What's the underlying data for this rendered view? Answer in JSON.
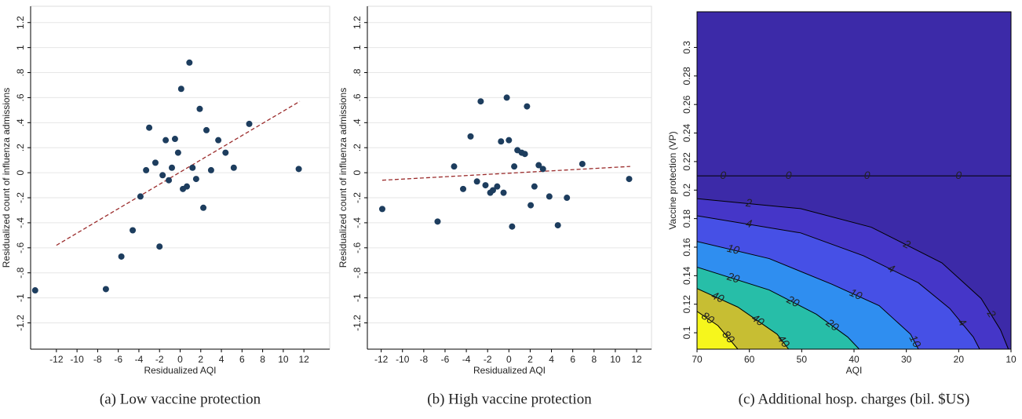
{
  "chart_data": [
    {
      "type": "scatter",
      "caption": "(a) Low vaccine protection",
      "xlabel": "Residualized AQI",
      "ylabel": "Residualized count of influenza admissions",
      "xlim": [
        -14.5,
        14.5
      ],
      "ylim": [
        -1.41,
        1.33
      ],
      "xticks": [
        -12,
        -10,
        -8,
        -6,
        -4,
        -2,
        0,
        2,
        4,
        6,
        8,
        10,
        12
      ],
      "yticks": [
        -1.2,
        -1,
        {
          "value": -0.8,
          "label": "-.8"
        },
        {
          "value": -0.6,
          "label": "-.6"
        },
        {
          "value": -0.4,
          "label": "-.4"
        },
        {
          "value": -0.2,
          "label": "-.2"
        },
        0,
        {
          "value": 0.2,
          "label": ".2"
        },
        {
          "value": 0.4,
          "label": ".4"
        },
        {
          "value": 0.6,
          "label": ".6"
        },
        {
          "value": 0.8,
          "label": ".8"
        },
        1,
        1.2
      ],
      "grid": true,
      "color": "#1d3d5e",
      "x": [
        -14.06,
        -7.2,
        -5.7,
        -4.6,
        -2.0,
        -3.85,
        -3.3,
        -3.0,
        -2.4,
        -1.7,
        -1.4,
        -1.1,
        -0.8,
        -0.5,
        -0.2,
        0.1,
        0.27,
        0.65,
        0.9,
        1.2,
        1.55,
        1.9,
        2.25,
        2.55,
        3.0,
        3.7,
        4.4,
        5.2,
        6.7,
        11.5
      ],
      "values": [
        -0.94,
        -0.93,
        -0.67,
        -0.46,
        -0.59,
        -0.19,
        0.02,
        0.36,
        0.08,
        -0.02,
        0.26,
        -0.06,
        0.04,
        0.27,
        0.16,
        0.67,
        -0.13,
        -0.11,
        0.88,
        0.04,
        -0.05,
        0.51,
        -0.28,
        0.34,
        0.02,
        0.26,
        0.16,
        0.04,
        0.39,
        0.03
      ],
      "fit": {
        "x": [
          -12,
          11.6
        ],
        "values": [
          -0.58,
          0.57
        ],
        "color": "#9b2c2c"
      }
    },
    {
      "type": "scatter",
      "caption": "(b) High vaccine protection",
      "xlabel": "Residualized AQI",
      "ylabel": "Residualized count of influenza admissions",
      "xlim": [
        -13.3,
        13.4
      ],
      "ylim": [
        -1.41,
        1.33
      ],
      "xticks": [
        -12,
        -10,
        -8,
        -6,
        -4,
        -2,
        0,
        2,
        4,
        6,
        8,
        10,
        12
      ],
      "yticks": [
        -1.2,
        -1,
        {
          "value": -0.8,
          "label": "-.8"
        },
        {
          "value": -0.6,
          "label": "-.6"
        },
        {
          "value": -0.4,
          "label": "-.4"
        },
        {
          "value": -0.2,
          "label": "-.2"
        },
        0,
        {
          "value": 0.2,
          "label": ".2"
        },
        {
          "value": 0.4,
          "label": ".4"
        },
        {
          "value": 0.6,
          "label": ".6"
        },
        {
          "value": 0.8,
          "label": ".8"
        },
        1,
        1.2
      ],
      "grid": true,
      "color": "#1d3d5e",
      "x": [
        -11.9,
        -6.7,
        -5.15,
        -4.3,
        -3.6,
        -3.0,
        -2.65,
        -2.2,
        -1.75,
        -1.5,
        -1.1,
        -0.74,
        -0.5,
        -0.2,
        0,
        0.3,
        0.5,
        0.8,
        1.2,
        1.5,
        1.7,
        2.05,
        2.4,
        2.8,
        3.2,
        3.8,
        4.6,
        5.45,
        6.9,
        11.3
      ],
      "values": [
        -0.29,
        -0.39,
        0.05,
        -0.13,
        0.29,
        -0.07,
        0.57,
        -0.1,
        -0.16,
        -0.14,
        -0.11,
        0.25,
        -0.16,
        0.6,
        0.26,
        -0.43,
        0.05,
        0.18,
        0.16,
        0.15,
        0.53,
        -0.26,
        -0.11,
        0.06,
        0.03,
        -0.19,
        -0.42,
        -0.2,
        0.07,
        -0.05
      ],
      "fit": {
        "x": [
          -11.9,
          11.4
        ],
        "values": [
          -0.06,
          0.05
        ],
        "color": "#9b2c2c"
      }
    },
    {
      "type": "contour",
      "caption": "(c) Additional hosp. charges (bil. $US)",
      "xlabel": "AQI",
      "ylabel": "Vaccine protection (VP)",
      "xlim": [
        70,
        10
      ],
      "ylim": [
        0.0885,
        0.325
      ],
      "xticks": [
        70,
        60,
        50,
        40,
        30,
        20,
        10
      ],
      "yticks": [
        0.1,
        0.12,
        0.14,
        0.16,
        0.18,
        0.2,
        0.22,
        0.24,
        0.26,
        0.28,
        0.3
      ],
      "background": "#3c2aa8",
      "levels": [
        {
          "level": 0,
          "x": [
            70,
            60,
            45,
            30,
            10
          ],
          "y": [
            0.21,
            0.21,
            0.21,
            0.21,
            0.21
          ]
        },
        {
          "level": 2,
          "fill": "#4536c8",
          "x": [
            70,
            50.2,
            36.7,
            23.2,
            15.7,
            12,
            10.5
          ],
          "y": [
            0.194,
            0.187,
            0.174,
            0.149,
            0.124,
            0.102,
            0.0885
          ]
        },
        {
          "level": 4,
          "fill": "#4650e6",
          "x": [
            70,
            50.2,
            38.2,
            27.7,
            21.7,
            17.2,
            16
          ],
          "y": [
            0.182,
            0.17,
            0.154,
            0.135,
            0.117,
            0.097,
            0.0885
          ]
        },
        {
          "level": 10,
          "fill": "#2f8ef0",
          "x": [
            70,
            56.2,
            44.2,
            35.2,
            29.2,
            27.7
          ],
          "y": [
            0.164,
            0.152,
            0.134,
            0.119,
            0.099,
            0.0885
          ]
        },
        {
          "level": 20,
          "fill": "#27bea8",
          "x": [
            70,
            56.2,
            47.2,
            41.2,
            39
          ],
          "y": [
            0.146,
            0.13,
            0.113,
            0.097,
            0.0885
          ]
        },
        {
          "level": 40,
          "fill": "#c7be33",
          "x": [
            70,
            62.2,
            54.7,
            52.5
          ],
          "y": [
            0.131,
            0.118,
            0.099,
            0.0885
          ]
        },
        {
          "level": 80,
          "fill": "#f6f61c",
          "x": [
            70,
            66,
            62.2
          ],
          "y": [
            0.115,
            0.105,
            0.0885
          ]
        }
      ]
    }
  ]
}
